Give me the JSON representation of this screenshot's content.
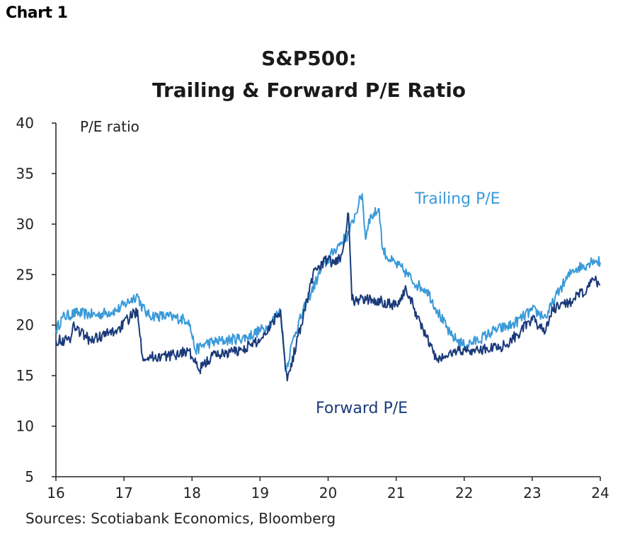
{
  "header": {
    "chart_label": "Chart 1"
  },
  "chart_data": {
    "type": "line",
    "title_line1": "S&P500:",
    "title_line2": "Trailing & Forward P/E Ratio",
    "ylabel": "P/E ratio",
    "xlabel": "",
    "ylim": [
      5,
      40
    ],
    "xlim": [
      16,
      24
    ],
    "yticks": [
      "40",
      "35",
      "30",
      "25",
      "20",
      "15",
      "10",
      "5"
    ],
    "xticks": [
      "16",
      "17",
      "18",
      "19",
      "20",
      "21",
      "22",
      "23",
      "24"
    ],
    "grid": false,
    "source": "Sources: Scotiabank Economics, Bloomberg",
    "series": [
      {
        "name": "Trailing P/E",
        "color": "#3a9ad9",
        "x": [
          16.0,
          16.1,
          16.3,
          16.6,
          16.9,
          17.2,
          17.25,
          17.35,
          17.7,
          17.95,
          18.05,
          18.2,
          18.5,
          18.8,
          19.1,
          19.3,
          19.38,
          19.5,
          19.7,
          19.9,
          20.1,
          20.3,
          20.45,
          20.5,
          20.55,
          20.6,
          20.75,
          20.8,
          20.9,
          21.1,
          21.3,
          21.45,
          21.6,
          21.8,
          22.0,
          22.2,
          22.45,
          22.7,
          23.0,
          23.2,
          23.4,
          23.6,
          23.8,
          23.9,
          24.0
        ],
        "values": [
          19.5,
          20.8,
          21.2,
          21.0,
          21.5,
          23.0,
          22.0,
          21.0,
          20.8,
          20.5,
          17.5,
          18.2,
          18.5,
          18.8,
          19.8,
          21.5,
          15.5,
          19.0,
          22.5,
          25.5,
          27.5,
          29.0,
          32.0,
          33.0,
          28.5,
          30.5,
          31.5,
          27.5,
          26.5,
          25.5,
          24.0,
          23.5,
          21.5,
          19.0,
          18.0,
          18.5,
          19.5,
          20.0,
          21.5,
          20.8,
          23.5,
          25.5,
          26.0,
          26.5,
          26.2
        ]
      },
      {
        "name": "Forward P/E",
        "color": "#1a3a7a",
        "x": [
          16.0,
          16.2,
          16.25,
          16.5,
          16.9,
          17.2,
          17.27,
          17.35,
          17.7,
          17.95,
          18.1,
          18.3,
          18.7,
          19.0,
          19.3,
          19.35,
          19.4,
          19.6,
          19.8,
          20.0,
          20.1,
          20.2,
          20.3,
          20.35,
          20.4,
          20.7,
          21.0,
          21.15,
          21.4,
          21.6,
          21.9,
          22.2,
          22.6,
          23.0,
          23.2,
          23.3,
          23.6,
          23.8,
          23.9,
          24.0
        ],
        "values": [
          18.5,
          18.5,
          20.0,
          18.5,
          19.5,
          21.5,
          17.0,
          16.8,
          17.0,
          17.5,
          15.5,
          17.0,
          17.5,
          18.5,
          21.5,
          17.5,
          14.5,
          20.0,
          25.5,
          26.5,
          26.0,
          27.0,
          31.0,
          22.5,
          22.5,
          22.5,
          22.0,
          23.5,
          19.5,
          16.5,
          17.5,
          17.5,
          18.0,
          20.5,
          19.5,
          21.5,
          22.5,
          23.5,
          24.5,
          24.0
        ]
      }
    ]
  }
}
